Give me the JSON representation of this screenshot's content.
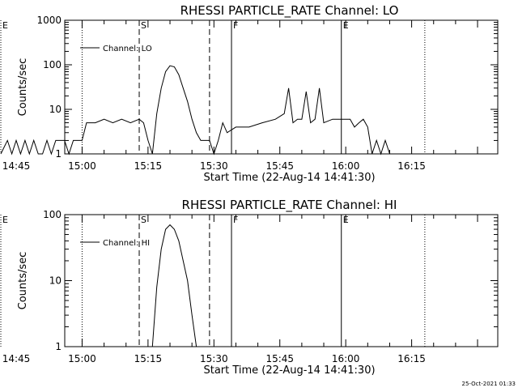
{
  "chart_data": [
    {
      "type": "line",
      "title": "RHESSI PARTICLE_RATE Channel: LO",
      "xlabel": "Start Time (22-Aug-14 14:41:30)",
      "ylabel": "Counts/sec",
      "yscale": "log",
      "ylim": [
        1,
        1000
      ],
      "xlim_minutes": [
        14.55,
        113.1
      ],
      "x_ticks": [
        "14:45",
        "15:00",
        "15:15",
        "15:30",
        "15:45",
        "16:00",
        "16:15"
      ],
      "y_ticks": [
        "1",
        "10",
        "100",
        "1000"
      ],
      "legend": "Channel: LO",
      "series": [
        {
          "name": "Channel: LO",
          "x": [
            "14:41:30",
            "14:43",
            "14:44",
            "14:45",
            "14:46",
            "14:47",
            "14:48",
            "14:49",
            "14:50",
            "14:51",
            "14:52",
            "14:53",
            "14:54",
            "14:55",
            "14:56",
            "14:57",
            "14:58",
            "14:59",
            "15:00",
            "15:01",
            "15:03",
            "15:05",
            "15:07",
            "15:09",
            "15:11",
            "15:13",
            "15:14",
            "15:15",
            "15:16",
            "15:17",
            "15:18",
            "15:19",
            "15:20",
            "15:21",
            "15:22",
            "15:23",
            "15:24",
            "15:25",
            "15:26",
            "15:27",
            "15:28",
            "15:29",
            "15:30",
            "15:31",
            "15:32",
            "15:33",
            "15:35",
            "15:38",
            "15:41",
            "15:44",
            "15:46",
            "15:47",
            "15:48",
            "15:49",
            "15:50",
            "15:51",
            "15:52",
            "15:53",
            "15:54",
            "15:55",
            "15:57",
            "15:59",
            "16:00",
            "16:01",
            "16:02",
            "16:03",
            "16:04",
            "16:05",
            "16:06",
            "16:07",
            "16:08",
            "16:09",
            "16:10"
          ],
          "y": [
            1,
            2,
            1,
            2,
            1,
            2,
            1,
            2,
            1,
            1,
            2,
            1,
            2,
            2,
            2,
            1,
            2,
            2,
            2,
            5,
            5,
            6,
            5,
            6,
            5,
            6,
            5,
            2,
            1,
            8,
            30,
            70,
            95,
            90,
            60,
            30,
            15,
            6,
            3,
            2,
            2,
            2,
            1,
            2,
            5,
            3,
            4,
            4,
            5,
            6,
            8,
            30,
            5,
            6,
            6,
            25,
            5,
            6,
            30,
            5,
            6,
            6,
            6,
            6,
            4,
            5,
            6,
            4,
            1,
            2,
            1,
            2,
            1
          ]
        }
      ],
      "markers": [
        {
          "label": "E",
          "time": "14:41:30",
          "style": "dotted"
        },
        {
          "label": "",
          "time": "15:00",
          "style": "dotted"
        },
        {
          "label": "S",
          "time": "15:13",
          "style": "dashed"
        },
        {
          "label": "",
          "time": "15:29",
          "style": "dashed"
        },
        {
          "label": "F",
          "time": "15:34",
          "style": "solid"
        },
        {
          "label": "E",
          "time": "15:59",
          "style": "solid"
        },
        {
          "label": "",
          "time": "16:18",
          "style": "dotted"
        }
      ]
    },
    {
      "type": "line",
      "title": "RHESSI PARTICLE_RATE Channel: HI",
      "xlabel": "Start Time (22-Aug-14 14:41:30)",
      "ylabel": "Counts/sec",
      "yscale": "log",
      "ylim": [
        1,
        100
      ],
      "xlim_minutes": [
        14.55,
        113.1
      ],
      "x_ticks": [
        "14:45",
        "15:00",
        "15:15",
        "15:30",
        "15:45",
        "16:00",
        "16:15"
      ],
      "y_ticks": [
        "1",
        "10",
        "100"
      ],
      "legend": "Channel: HI",
      "series": [
        {
          "name": "Channel: HI",
          "x": [
            "15:16",
            "15:17",
            "15:18",
            "15:19",
            "15:20",
            "15:21",
            "15:22",
            "15:23",
            "15:24",
            "15:25",
            "15:26"
          ],
          "y": [
            1,
            8,
            30,
            60,
            70,
            60,
            40,
            20,
            10,
            3,
            1
          ]
        }
      ],
      "markers": [
        {
          "label": "E",
          "time": "14:41:30",
          "style": "dotted"
        },
        {
          "label": "",
          "time": "15:00",
          "style": "dotted"
        },
        {
          "label": "S",
          "time": "15:13",
          "style": "dashed"
        },
        {
          "label": "",
          "time": "15:29",
          "style": "dashed"
        },
        {
          "label": "F",
          "time": "15:34",
          "style": "solid"
        },
        {
          "label": "E",
          "time": "15:59",
          "style": "solid"
        },
        {
          "label": "",
          "time": "16:18",
          "style": "dotted"
        }
      ]
    }
  ],
  "timestamp": "25-Oct-2021 01:33"
}
